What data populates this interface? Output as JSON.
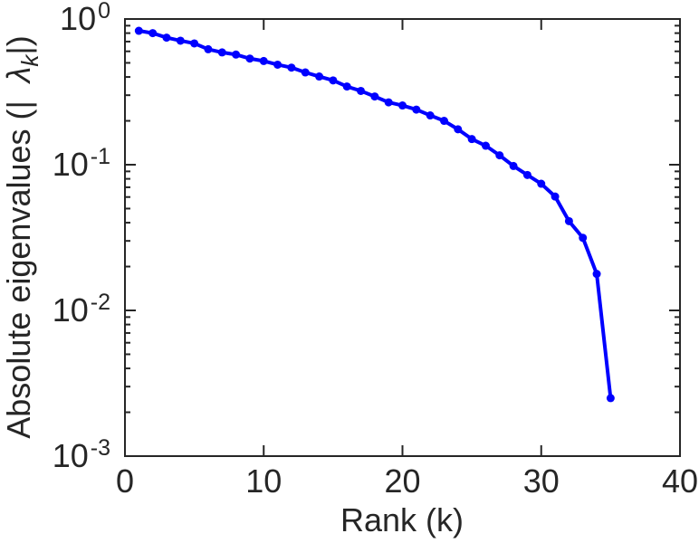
{
  "figure": {
    "background": "#ffffff",
    "axis_color": "#262626",
    "text_color": "#262626"
  },
  "chart_data": {
    "type": "line",
    "title": "",
    "xlabel": "Rank (k)",
    "ylabel": "Absolute eigenvalues (| λ_k |)",
    "ylabel_parts": {
      "prefix": "Absolute eigenvalues (|",
      "symbol": "λ",
      "subscript": "k",
      "suffix": "|)"
    },
    "grid": false,
    "legend": null,
    "x_axis": {
      "min": 0,
      "max": 40,
      "ticks": [
        {
          "label": "0",
          "value": 0
        },
        {
          "label": "10",
          "value": 10
        },
        {
          "label": "20",
          "value": 20
        },
        {
          "label": "30",
          "value": 30
        },
        {
          "label": "40",
          "value": 40
        }
      ]
    },
    "y_axis": {
      "scale": "log",
      "min_log10": -3,
      "max_log10": 0,
      "ticks": [
        {
          "base": "10",
          "exp": "0",
          "value": 1
        },
        {
          "base": "10",
          "exp": "-1",
          "value": 0.1
        },
        {
          "base": "10",
          "exp": "-2",
          "value": 0.01
        },
        {
          "base": "10",
          "exp": "-3",
          "value": 0.001
        }
      ]
    },
    "series": [
      {
        "name": "absolute-eigenvalues",
        "color": "#0000ff",
        "marker": "circle",
        "line_width": 4,
        "marker_radius": 4.5,
        "x": [
          1,
          2,
          3,
          4,
          5,
          6,
          7,
          8,
          9,
          10,
          11,
          12,
          13,
          14,
          15,
          16,
          17,
          18,
          19,
          20,
          21,
          22,
          23,
          24,
          25,
          26,
          27,
          28,
          29,
          30,
          31,
          32,
          33,
          34,
          35
        ],
        "values": [
          0.83,
          0.8,
          0.745,
          0.71,
          0.68,
          0.62,
          0.59,
          0.57,
          0.535,
          0.515,
          0.486,
          0.464,
          0.43,
          0.403,
          0.379,
          0.344,
          0.321,
          0.294,
          0.268,
          0.255,
          0.239,
          0.218,
          0.2,
          0.175,
          0.15,
          0.135,
          0.116,
          0.098,
          0.085,
          0.074,
          0.0605,
          0.041,
          0.0315,
          0.0178,
          0.0025
        ]
      }
    ]
  }
}
